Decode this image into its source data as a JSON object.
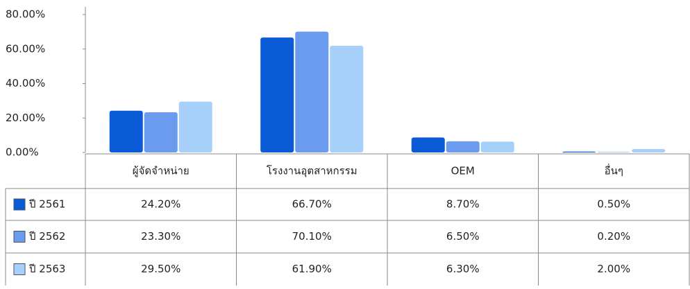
{
  "chart_data": {
    "type": "bar",
    "categories": [
      "ผู้จัดจำหน่าย",
      "โรงงานอุตสาหกรรม",
      "OEM",
      "อื่นๆ"
    ],
    "series": [
      {
        "name": "ปี 2561",
        "color": "#0b5ad6",
        "values": [
          24.2,
          66.7,
          8.7,
          0.5
        ],
        "value_labels": [
          "24.20%",
          "66.70%",
          "8.70%",
          "0.50%"
        ]
      },
      {
        "name": "ปี 2562",
        "color": "#6b9bee",
        "values": [
          23.3,
          70.1,
          6.5,
          0.2
        ],
        "value_labels": [
          "23.30%",
          "70.10%",
          "6.50%",
          "0.20%"
        ]
      },
      {
        "name": "ปี 2563",
        "color": "#a6d0fa",
        "values": [
          29.5,
          61.9,
          6.3,
          2.0
        ],
        "value_labels": [
          "29.50%",
          "61.90%",
          "6.30%",
          "2.00%"
        ]
      }
    ],
    "ylim": [
      0,
      80
    ],
    "yticks": [
      {
        "value": 0,
        "label": "0.00%"
      },
      {
        "value": 20,
        "label": "20.00%"
      },
      {
        "value": 40,
        "label": "40.00%"
      },
      {
        "value": 60,
        "label": "60.00%"
      },
      {
        "value": 80,
        "label": "80.00%"
      }
    ],
    "legend": "table"
  }
}
